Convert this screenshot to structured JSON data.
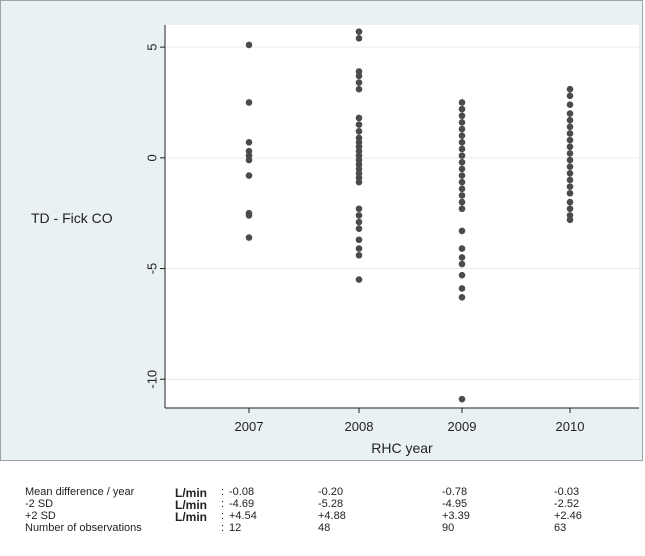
{
  "chart_data": {
    "type": "scatter",
    "xlabel": "RHC year",
    "ylabel": "TD - Fick CO",
    "categories": [
      "2007",
      "2008",
      "2009",
      "2010"
    ],
    "y_ticks": [
      5,
      0,
      -5,
      -10
    ],
    "ylim": [
      -11.3,
      6.0
    ],
    "grid": true,
    "series": [
      {
        "category": "2007",
        "y": [
          5.1,
          2.5,
          0.7,
          0.3,
          0.1,
          -0.1,
          -0.8,
          -2.5,
          -2.6,
          -3.6
        ]
      },
      {
        "category": "2008",
        "y": [
          5.7,
          5.4,
          3.9,
          3.7,
          3.4,
          3.1,
          1.8,
          1.5,
          1.2,
          0.9,
          0.7,
          0.5,
          0.3,
          0.1,
          -0.1,
          -0.3,
          -0.5,
          -0.7,
          -0.9,
          -1.1,
          -2.3,
          -2.6,
          -2.9,
          -3.2,
          -3.7,
          -4.1,
          -4.4,
          -5.5
        ]
      },
      {
        "category": "2009",
        "y": [
          2.5,
          2.2,
          1.9,
          1.6,
          1.3,
          1.0,
          0.7,
          0.4,
          0.1,
          -0.2,
          -0.5,
          -0.8,
          -1.1,
          -1.4,
          -1.7,
          -2.0,
          -2.3,
          -3.3,
          -4.1,
          -4.5,
          -4.8,
          -5.3,
          -5.9,
          -6.3,
          -10.9
        ]
      },
      {
        "category": "2010",
        "y": [
          3.1,
          2.8,
          2.4,
          2.0,
          1.7,
          1.4,
          1.1,
          0.8,
          0.5,
          0.2,
          -0.1,
          -0.4,
          -0.7,
          -1.0,
          -1.3,
          -1.6,
          -2.0,
          -2.3,
          -2.6,
          -2.8
        ]
      }
    ]
  },
  "stats": {
    "rows": [
      {
        "label": "Mean difference / year",
        "unit": "L/min",
        "colon": ":",
        "values": [
          "-0.08",
          "-0.20",
          "-0.78",
          "-0.03"
        ]
      },
      {
        "label": "-2 SD",
        "unit": "L/min",
        "colon": ":",
        "values": [
          "-4.69",
          "-5.28",
          "-4.95",
          "-2.52"
        ]
      },
      {
        "label": "+2 SD",
        "unit": "L/min",
        "colon": ":",
        "values": [
          "+4.54",
          "+4.88",
          "+3.39",
          "+2.46"
        ]
      },
      {
        "label": "Number of observations",
        "unit": "",
        "colon": ":",
        "values": [
          "12",
          "48",
          "90",
          "63"
        ]
      }
    ]
  },
  "colors": {
    "panel_bg": "#eaf1f3",
    "plot_bg": "#ffffff",
    "gridline": "#e4ecee",
    "marker": "#4b4b4b",
    "axis": "#222222"
  }
}
